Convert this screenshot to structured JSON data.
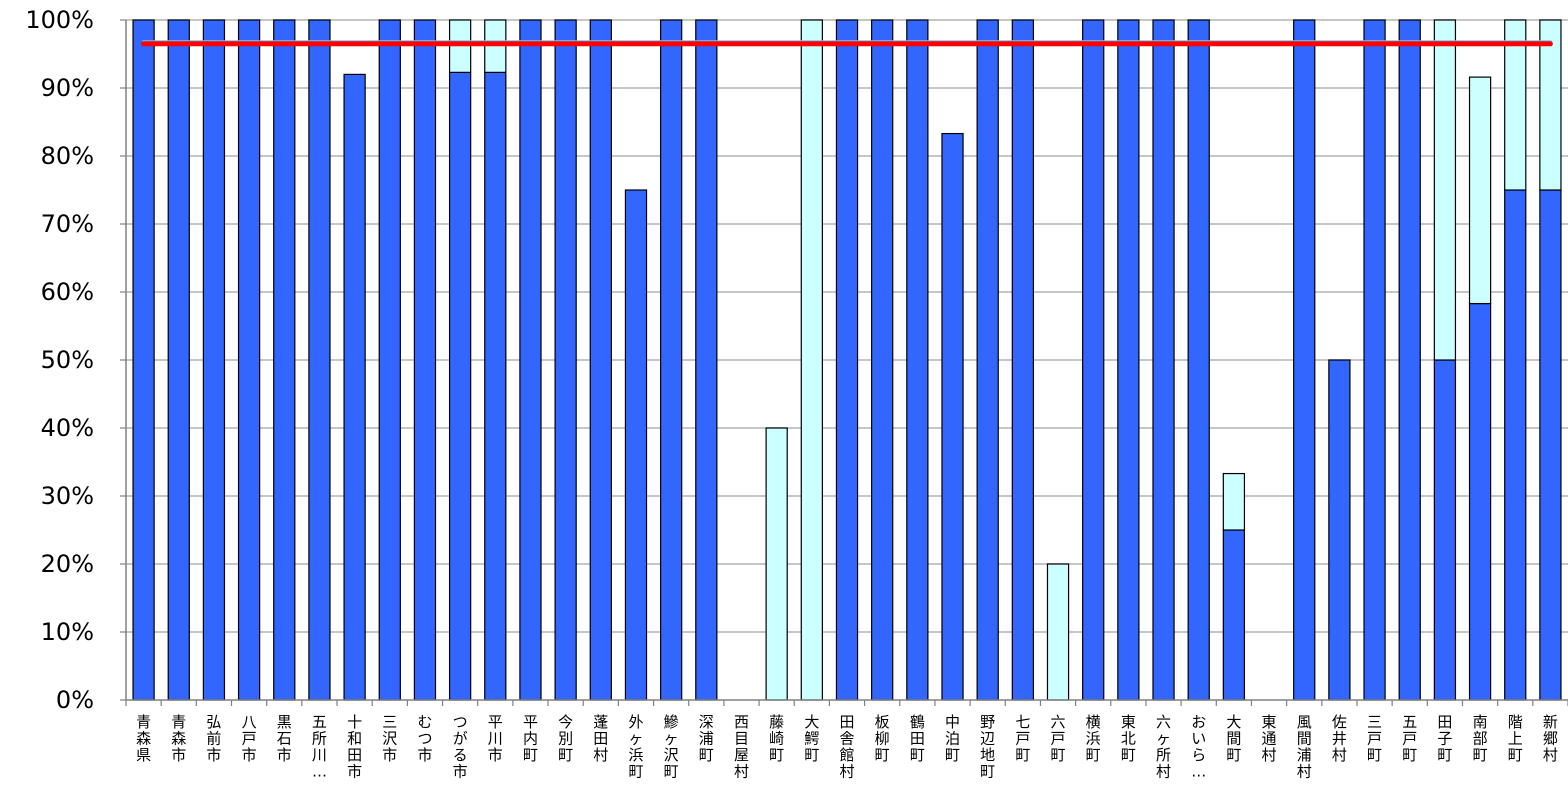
{
  "chart_data": {
    "type": "bar",
    "stacked": true,
    "categories": [
      "青森県",
      "青森市",
      "弘前市",
      "八戸市",
      "黒石市",
      "五所川…",
      "十和田市",
      "三沢市",
      "むつ市",
      "つがる市",
      "平川市",
      "平内町",
      "今別町",
      "蓬田村",
      "外ヶ浜町",
      "鰺ヶ沢町",
      "深浦町",
      "西目屋村",
      "藤崎町",
      "大鰐町",
      "田舎館村",
      "板柳町",
      "鶴田町",
      "中泊町",
      "野辺地町",
      "七戸町",
      "六戸町",
      "横浜町",
      "東北町",
      "六ヶ所村",
      "おいら…",
      "大間町",
      "東通村",
      "風間浦村",
      "佐井村",
      "三戸町",
      "五戸町",
      "田子町",
      "南部町",
      "階上町",
      "新郷村"
    ],
    "series": [
      {
        "values": [
          100,
          100,
          100,
          100,
          100,
          100,
          92,
          100,
          100,
          92.3,
          92.3,
          100,
          100,
          100,
          75,
          100,
          100,
          0,
          0,
          0,
          100,
          100,
          100,
          83.3,
          100,
          100,
          0,
          100,
          100,
          100,
          100,
          25,
          0,
          100,
          50,
          100,
          100,
          50,
          58.3,
          75,
          75
        ],
        "color": "#3366ff"
      },
      {
        "values": [
          0,
          0,
          0,
          0,
          0,
          0,
          0,
          0,
          0,
          7.7,
          7.7,
          0,
          0,
          0,
          0,
          0,
          0,
          0,
          40,
          100,
          0,
          0,
          0,
          0,
          0,
          0,
          20,
          0,
          0,
          0,
          0,
          8.3,
          0,
          0,
          0,
          0,
          0,
          50,
          33.3,
          25,
          25
        ],
        "color": "#ccffff"
      },
      {
        "values": [
          96.5,
          96.5,
          96.5,
          96.5,
          96.5,
          96.5,
          96.5,
          96.5,
          96.5,
          96.5,
          96.5,
          96.5,
          96.5,
          96.5,
          96.5,
          96.5,
          96.5,
          96.5,
          96.5,
          96.5,
          96.5,
          96.5,
          96.5,
          96.5,
          96.5,
          96.5,
          96.5,
          96.5,
          96.5,
          96.5,
          96.5,
          96.5,
          96.5,
          96.5,
          96.5,
          96.5,
          96.5,
          96.5,
          96.5,
          96.5,
          96.5
        ],
        "color": "#ff0000",
        "type": "line"
      },
      {
        "values": [
          96.8,
          96.8,
          96.8,
          96.8,
          96.8,
          96.8,
          96.8,
          96.8,
          96.8,
          96.8,
          96.8,
          96.8,
          96.8,
          96.8,
          96.8,
          96.8,
          96.8,
          96.8,
          96.8,
          96.8,
          96.8,
          96.8,
          96.8,
          96.8,
          96.8,
          96.8,
          96.8,
          96.8,
          96.8,
          96.8,
          96.8,
          96.8,
          96.8,
          96.8,
          96.8,
          96.8,
          96.8,
          96.8,
          96.8,
          96.8,
          96.8
        ],
        "color": "#66ccff",
        "type": "line"
      }
    ],
    "yticks": [
      "0%",
      "10%",
      "20%",
      "30%",
      "40%",
      "50%",
      "60%",
      "70%",
      "80%",
      "90%",
      "100%"
    ],
    "ylim": [
      0,
      100
    ],
    "title": "",
    "xlabel": "",
    "ylabel": "",
    "grid": true,
    "legend": "none"
  }
}
